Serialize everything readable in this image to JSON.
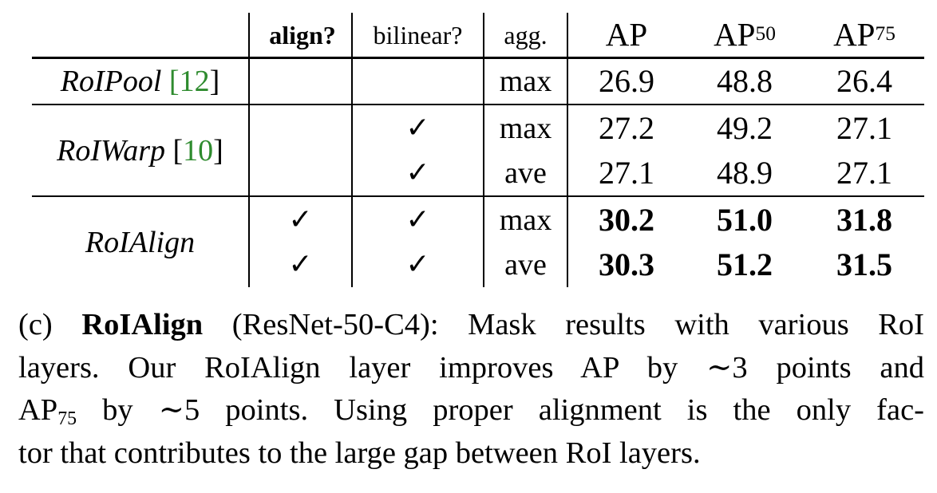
{
  "table": {
    "headers": {
      "align": "align?",
      "bilinear": "bilinear?",
      "agg": "agg.",
      "ap": "AP",
      "ap50_base": "AP",
      "ap50_sub": "50",
      "ap75_base": "AP",
      "ap75_sub": "75"
    },
    "groups": [
      {
        "method": "RoIPool",
        "cite_open": "[",
        "cite": "12",
        "cite_close": "]",
        "rows": [
          {
            "align": "",
            "bilinear": "",
            "agg": "max",
            "ap": "26.9",
            "ap50": "48.8",
            "ap75": "26.4",
            "bold": false
          }
        ]
      },
      {
        "method": "RoIWarp",
        "cite_open": "[",
        "cite": "10",
        "cite_close": "]",
        "rows": [
          {
            "align": "",
            "bilinear": "✓",
            "agg": "max",
            "ap": "27.2",
            "ap50": "49.2",
            "ap75": "27.1",
            "bold": false
          },
          {
            "align": "",
            "bilinear": "✓",
            "agg": "ave",
            "ap": "27.1",
            "ap50": "48.9",
            "ap75": "27.1",
            "bold": false
          }
        ]
      },
      {
        "method": "RoIAlign",
        "rows": [
          {
            "align": "✓",
            "bilinear": "✓",
            "agg": "max",
            "ap": "30.2",
            "ap50": "51.0",
            "ap75": "31.8",
            "bold": true
          },
          {
            "align": "✓",
            "bilinear": "✓",
            "agg": "ave",
            "ap": "30.3",
            "ap50": "51.2",
            "ap75": "31.5",
            "bold": true
          }
        ]
      }
    ]
  },
  "caption": {
    "prefix": "(c) ",
    "bold_title": "RoIAlign",
    "line1_rest": " (ResNet-50-C4): Mask results with various RoI",
    "line2": "layers. Our RoIAlign layer improves AP by ∼3 points and",
    "line3_ap": "AP",
    "line3_sub": "75",
    "line3_rest": " by ∼5 points. Using proper alignment is the only fac-",
    "line4": "tor that contributes to the large gap between RoI layers."
  }
}
